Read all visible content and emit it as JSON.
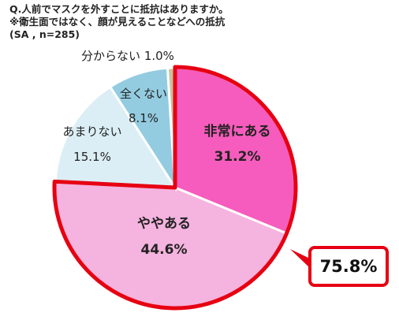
{
  "title": {
    "line1": "Q.人前でマスクを外すことに抵抗はありますか。",
    "line2": "※衛生面ではなく、顔が見えることなどへの抵抗",
    "line3": "(SA , n=285)"
  },
  "callout": {
    "value": "75.8%"
  },
  "colors": {
    "slice1": "#f65cbd",
    "slice2": "#f5b3df",
    "slice3": "#dbeef5",
    "slice4": "#93cce0",
    "slice5": "#c8c29a",
    "highlight": "#e60012"
  },
  "chart_data": {
    "type": "pie",
    "title": "Q.人前でマスクを外すことに抵抗はありますか。",
    "subtitle": "※衛生面ではなく、顔が見えることなどへの抵抗",
    "n": "(SA , n=285)",
    "start_angle_deg": 0,
    "direction": "clockwise",
    "slices": [
      {
        "label": "非常にある",
        "value": 31.2,
        "display": "31.2%",
        "highlight": true
      },
      {
        "label": "ややある",
        "value": 44.6,
        "display": "44.6%",
        "highlight": true
      },
      {
        "label": "あまりない",
        "value": 15.1,
        "display": "15.1%",
        "highlight": false
      },
      {
        "label": "全くない",
        "value": 8.1,
        "display": "8.1%",
        "highlight": false
      },
      {
        "label": "分からない",
        "value": 1.0,
        "display": "1.0%",
        "highlight": false
      }
    ],
    "highlight_total": "75.8%"
  }
}
